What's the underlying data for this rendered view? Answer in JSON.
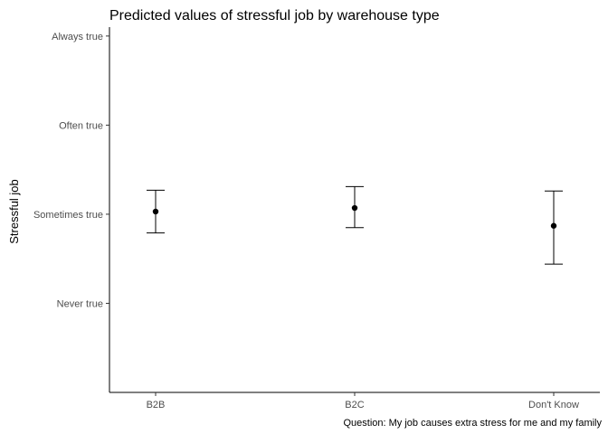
{
  "chart_data": {
    "type": "scatter",
    "title": "Predicted values of stressful job by warehouse type",
    "ylabel": "Stressful job",
    "xlabel": "",
    "caption": "Question: My job causes extra stress for me and my family",
    "categories": [
      "B2B",
      "B2C",
      "Don't Know"
    ],
    "y_ticks": [
      {
        "value": 1,
        "label": "Never true"
      },
      {
        "value": 2,
        "label": "Sometimes true"
      },
      {
        "value": 3,
        "label": "Often true"
      },
      {
        "value": 4,
        "label": "Always true"
      }
    ],
    "ylim": [
      0.0,
      4.1
    ],
    "grid": false,
    "errorbar_style": "whiskers",
    "points": [
      {
        "category": "B2B",
        "value": 2.03,
        "lower": 1.79,
        "upper": 2.27
      },
      {
        "category": "B2C",
        "value": 2.07,
        "lower": 1.85,
        "upper": 2.31
      },
      {
        "category": "Don't Know",
        "value": 1.87,
        "lower": 1.44,
        "upper": 2.26
      }
    ]
  }
}
